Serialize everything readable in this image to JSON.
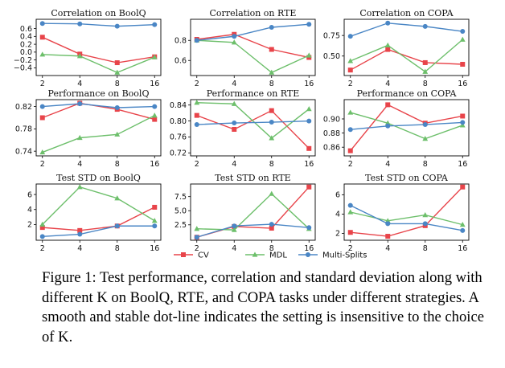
{
  "colors": {
    "CV": "#e8444a",
    "MDL": "#6dbf6b",
    "Multi-Splits": "#4a86c5"
  },
  "legend": [
    "CV",
    "MDL",
    "Multi-Splits"
  ],
  "caption": "Figure 1: Test performance, correlation and standard deviation along with different K on BoolQ, RTE, and COPA tasks under different strategies. A smooth and stable dot-line indicates the setting is insensitive to the choice of K.",
  "chart_data": [
    {
      "type": "line",
      "title": "Correlation on BoolQ",
      "x": [
        2,
        4,
        8,
        16
      ],
      "yticks": [
        "0.6",
        "0.4",
        "0.2",
        "0.0",
        "−0.2",
        "−0.4"
      ],
      "ylim": [
        -0.52,
        0.76
      ],
      "series": [
        {
          "name": "CV",
          "values": [
            0.38,
            -0.05,
            -0.27,
            -0.12
          ]
        },
        {
          "name": "MDL",
          "values": [
            -0.06,
            -0.1,
            -0.52,
            -0.13
          ]
        },
        {
          "name": "Multi-Splits",
          "values": [
            0.73,
            0.72,
            0.66,
            0.7
          ]
        }
      ]
    },
    {
      "type": "line",
      "title": "Correlation on RTE",
      "x": [
        2,
        4,
        8,
        16
      ],
      "yticks": [
        "0.8",
        "0.6"
      ],
      "ylim": [
        0.48,
        0.98
      ],
      "series": [
        {
          "name": "CV",
          "values": [
            0.81,
            0.86,
            0.71,
            0.63
          ]
        },
        {
          "name": "MDL",
          "values": [
            0.8,
            0.78,
            0.48,
            0.65
          ]
        },
        {
          "name": "Multi-Splits",
          "values": [
            0.8,
            0.84,
            0.93,
            0.96
          ]
        }
      ]
    },
    {
      "type": "line",
      "title": "Correlation on COPA",
      "x": [
        2,
        4,
        8,
        16
      ],
      "yticks": [
        "0.75",
        "0.50"
      ],
      "ylim": [
        0.3,
        0.91
      ],
      "series": [
        {
          "name": "CV",
          "values": [
            0.33,
            0.58,
            0.42,
            0.4
          ]
        },
        {
          "name": "MDL",
          "values": [
            0.44,
            0.63,
            0.31,
            0.7
          ]
        },
        {
          "name": "Multi-Splits",
          "values": [
            0.74,
            0.9,
            0.86,
            0.8
          ]
        }
      ]
    },
    {
      "type": "line",
      "title": "Performance on BoolQ",
      "x": [
        2,
        4,
        8,
        16
      ],
      "yticks": [
        "0.82",
        "0.78",
        "0.74"
      ],
      "ylim": [
        0.737,
        0.827
      ],
      "series": [
        {
          "name": "CV",
          "values": [
            0.8,
            0.826,
            0.815,
            0.797
          ]
        },
        {
          "name": "MDL",
          "values": [
            0.738,
            0.764,
            0.77,
            0.804
          ]
        },
        {
          "name": "Multi-Splits",
          "values": [
            0.82,
            0.825,
            0.818,
            0.82
          ]
        }
      ]
    },
    {
      "type": "line",
      "title": "Performance on RTE",
      "x": [
        2,
        4,
        8,
        16
      ],
      "yticks": [
        "0.84",
        "0.80",
        "0.76",
        "0.72"
      ],
      "ylim": [
        0.72,
        0.846
      ],
      "series": [
        {
          "name": "CV",
          "values": [
            0.814,
            0.779,
            0.826,
            0.731
          ]
        },
        {
          "name": "MDL",
          "values": [
            0.846,
            0.843,
            0.757,
            0.83
          ]
        },
        {
          "name": "Multi-Splits",
          "values": [
            0.791,
            0.795,
            0.797,
            0.8
          ]
        }
      ]
    },
    {
      "type": "line",
      "title": "Performance on COPA",
      "x": [
        2,
        4,
        8,
        16
      ],
      "yticks": [
        "0.90",
        "0.88",
        "0.86"
      ],
      "ylim": [
        0.852,
        0.923
      ],
      "series": [
        {
          "name": "CV",
          "values": [
            0.855,
            0.92,
            0.894,
            0.904
          ]
        },
        {
          "name": "MDL",
          "values": [
            0.909,
            0.894,
            0.872,
            0.891
          ]
        },
        {
          "name": "Multi-Splits",
          "values": [
            0.885,
            0.89,
            0.892,
            0.895
          ]
        }
      ]
    },
    {
      "type": "line",
      "title": "Test STD on BoolQ",
      "x": [
        2,
        4,
        8,
        16
      ],
      "yticks": [
        "6",
        "4",
        "2"
      ],
      "ylim": [
        0.3,
        7.0
      ],
      "series": [
        {
          "name": "CV",
          "values": [
            1.6,
            1.2,
            1.8,
            4.3
          ]
        },
        {
          "name": "MDL",
          "values": [
            2.0,
            7.0,
            5.5,
            2.5
          ]
        },
        {
          "name": "Multi-Splits",
          "values": [
            0.4,
            0.7,
            1.8,
            1.8
          ]
        }
      ]
    },
    {
      "type": "line",
      "title": "Test STD on RTE",
      "x": [
        2,
        4,
        8,
        16
      ],
      "yticks": [
        "7.5",
        "5.0",
        "2.5"
      ],
      "ylim": [
        0.3,
        9.2
      ],
      "series": [
        {
          "name": "CV",
          "values": [
            0.3,
            2.2,
            1.9,
            9.2
          ]
        },
        {
          "name": "MDL",
          "values": [
            1.8,
            1.6,
            8.0,
            1.8
          ]
        },
        {
          "name": "Multi-Splits",
          "values": [
            0.3,
            2.3,
            2.6,
            2.0
          ]
        }
      ]
    },
    {
      "type": "line",
      "title": "Test STD on COPA",
      "x": [
        2,
        4,
        8,
        16
      ],
      "yticks": [
        "6",
        "4",
        "2"
      ],
      "ylim": [
        1.6,
        6.8
      ],
      "series": [
        {
          "name": "CV",
          "values": [
            2.1,
            1.7,
            2.8,
            6.8
          ]
        },
        {
          "name": "MDL",
          "values": [
            4.2,
            3.3,
            3.9,
            2.9
          ]
        },
        {
          "name": "Multi-Splits",
          "values": [
            4.9,
            3.0,
            3.0,
            2.3
          ]
        }
      ]
    }
  ]
}
